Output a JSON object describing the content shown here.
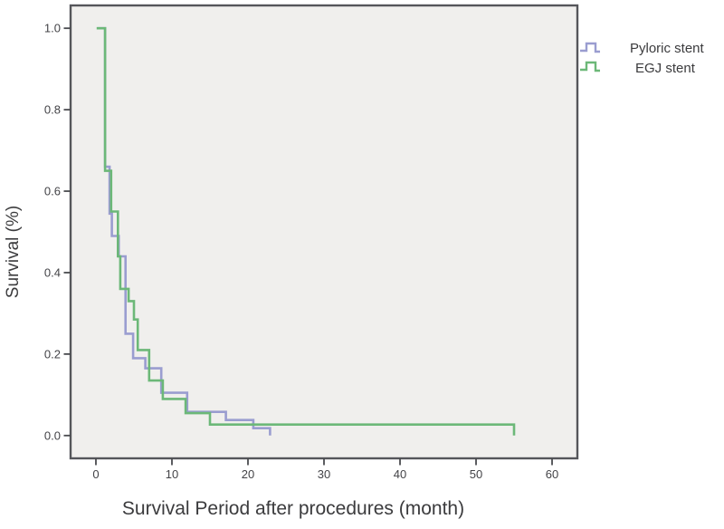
{
  "chart_data": {
    "type": "line",
    "variant": "kaplan-meier-step-survival",
    "title": "",
    "xlabel": "Survival Period after procedures (month)",
    "ylabel": "Survival (%)",
    "x_ticks": [
      0,
      10,
      20,
      30,
      40,
      50,
      60
    ],
    "y_ticks": [
      1.0,
      0.8,
      0.6,
      0.4,
      0.2,
      0.0
    ],
    "xlim": [
      -3.33,
      63.33
    ],
    "ylim": [
      -0.056,
      1.056
    ],
    "grid": false,
    "legend_position": "outside-top-right",
    "series": [
      {
        "name": "Pyloric stent",
        "color": "#9a9dd0",
        "steps": [
          [
            0.2,
            1.0
          ],
          [
            1.2,
            0.66
          ],
          [
            1.8,
            0.545
          ],
          [
            2.1,
            0.49
          ],
          [
            3.0,
            0.44
          ],
          [
            3.9,
            0.25
          ],
          [
            4.9,
            0.19
          ],
          [
            6.5,
            0.165
          ],
          [
            8.6,
            0.105
          ],
          [
            12.0,
            0.058
          ],
          [
            17.1,
            0.038
          ],
          [
            20.7,
            0.018
          ],
          [
            22.9,
            0.0
          ]
        ]
      },
      {
        "name": "EGJ stent",
        "color": "#6cb878",
        "steps": [
          [
            0.1,
            1.0
          ],
          [
            1.2,
            0.65
          ],
          [
            2.0,
            0.55
          ],
          [
            2.9,
            0.44
          ],
          [
            3.2,
            0.36
          ],
          [
            4.3,
            0.33
          ],
          [
            5.0,
            0.285
          ],
          [
            5.5,
            0.21
          ],
          [
            7.0,
            0.135
          ],
          [
            8.8,
            0.09
          ],
          [
            11.8,
            0.055
          ],
          [
            15.0,
            0.027
          ],
          [
            55.0,
            0.0
          ]
        ]
      }
    ]
  },
  "styles": {
    "figure_bg": "#ffffff",
    "plot_bg": "#f0efed",
    "plot_border": "#55565a",
    "tick_color": "#4a4b4f",
    "text_color": "#3b3b3d"
  }
}
